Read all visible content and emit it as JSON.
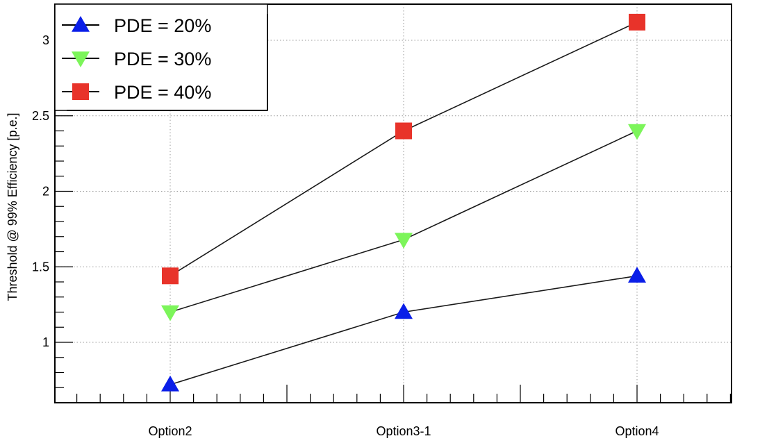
{
  "chart_data": {
    "type": "line",
    "categories": [
      "Option2",
      "Option3-1",
      "Option4"
    ],
    "ylabel": "Threshold @ 99% Efficiency [p.e.]",
    "xlabel": "",
    "ylim": [
      0.6,
      3.2
    ],
    "yticks": [
      1,
      1.5,
      2,
      2.5,
      3
    ],
    "ytick_labels": [
      "1",
      "1.5",
      "2",
      "2.5",
      "3"
    ],
    "grid": true,
    "legend_position": "top-left",
    "series": [
      {
        "name": "PDE = 20%",
        "values": [
          0.72,
          1.2,
          1.44
        ],
        "marker": "triangle-up",
        "color": "#0a1ee8"
      },
      {
        "name": "PDE = 30%",
        "values": [
          1.2,
          1.68,
          2.4
        ],
        "marker": "triangle-down",
        "color": "#7cf55a"
      },
      {
        "name": "PDE = 40%",
        "values": [
          1.44,
          2.4,
          3.12
        ],
        "marker": "square",
        "color": "#e8332a"
      }
    ]
  }
}
